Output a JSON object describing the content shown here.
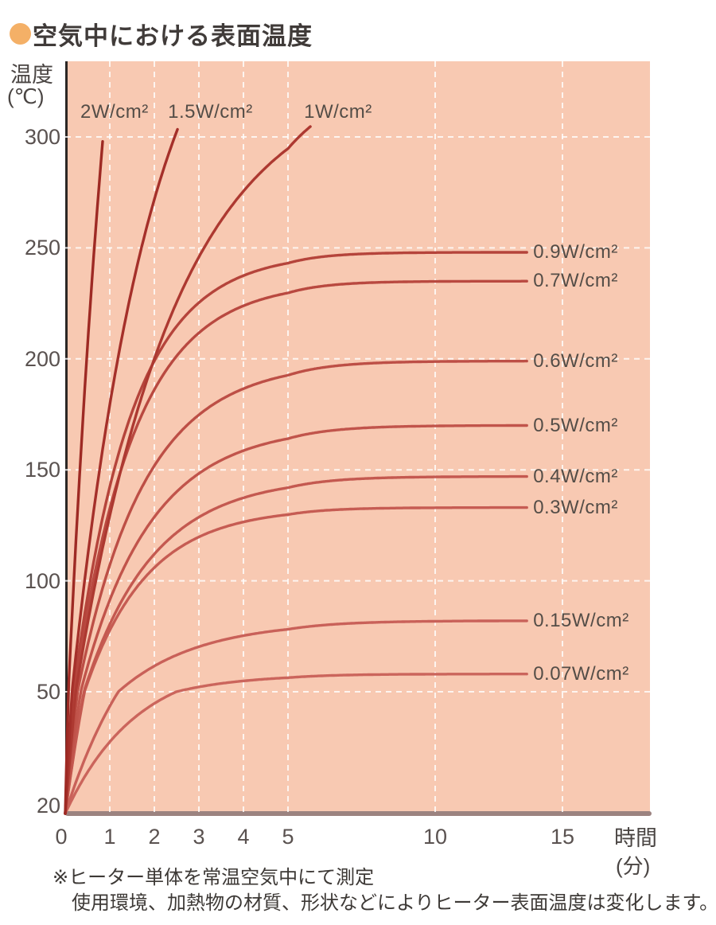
{
  "title": "空気中における表面温度",
  "footnotes": [
    "※ヒーター単体を常温空気中にて測定",
    "使用環境、加熱物の材質、形状などによりヒーター表面温度は変化します。"
  ],
  "colors": {
    "plot_background": "#f8c9b2",
    "gridline": "#ffffff",
    "axis_line": "#2b2725",
    "baseline_bar": "#9c8380",
    "title_bullet": "#f4b067",
    "tick_text": "#5a5250",
    "label_text": "#544d47"
  },
  "chart_data": {
    "type": "line",
    "title": "空気中における表面温度",
    "ylabel": "温度",
    "ylabel_unit": "(℃)",
    "xlabel": "時間",
    "xlabel_unit": "(分)",
    "ylim": [
      20,
      310
    ],
    "xlim": [
      0,
      16
    ],
    "grid": "white dashed, on",
    "legend_position": "labels next to each curve",
    "axis_notes": "y-axis origin is 20°C ambient; x-axis is compressed after 5 minutes (ticks 0-5 then 10, 15)",
    "x_ticks": [
      0,
      1,
      2,
      3,
      4,
      5,
      10,
      15
    ],
    "y_ticks": [
      300,
      250,
      200,
      150,
      100,
      50,
      20
    ],
    "x_gridlines": [
      1,
      2,
      3,
      4,
      5,
      10,
      15
    ],
    "y_gridlines": [
      300,
      250,
      200,
      150,
      100,
      50
    ],
    "start_temp_c": 20,
    "series": [
      {
        "label": "0.07W/cm²",
        "power_w_cm2": 0.07,
        "saturation_temp_c": 58,
        "tau_min": 1.6,
        "t_end_min": 13.6,
        "offscale": false,
        "label_pos": "right",
        "color": "#cb655c"
      },
      {
        "label": "0.15W/cm²",
        "power_w_cm2": 0.15,
        "saturation_temp_c": 82,
        "tau_min": 1.8,
        "t_end_min": 13.6,
        "offscale": false,
        "label_pos": "right",
        "color": "#c96159"
      },
      {
        "label": "0.3W/cm²",
        "power_w_cm2": 0.3,
        "saturation_temp_c": 133,
        "tau_min": 1.4,
        "t_end_min": 13.6,
        "offscale": false,
        "label_pos": "right",
        "color": "#c65c53"
      },
      {
        "label": "0.4W/cm²",
        "power_w_cm2": 0.4,
        "saturation_temp_c": 147,
        "tau_min": 1.55,
        "t_end_min": 13.6,
        "offscale": false,
        "label_pos": "right",
        "color": "#c45950"
      },
      {
        "label": "0.5W/cm²",
        "power_w_cm2": 0.5,
        "saturation_temp_c": 170,
        "tau_min": 1.55,
        "t_end_min": 13.6,
        "offscale": false,
        "label_pos": "right",
        "color": "#c1544b"
      },
      {
        "label": "0.6W/cm²",
        "power_w_cm2": 0.6,
        "saturation_temp_c": 199,
        "tau_min": 1.5,
        "t_end_min": 13.6,
        "offscale": false,
        "label_pos": "right",
        "color": "#bd4f46"
      },
      {
        "label": "0.7W/cm²",
        "power_w_cm2": 0.7,
        "saturation_temp_c": 235,
        "tau_min": 1.35,
        "t_end_min": 13.6,
        "offscale": false,
        "label_pos": "right",
        "color": "#b94940"
      },
      {
        "label": "0.9W/cm²",
        "power_w_cm2": 0.9,
        "saturation_temp_c": 248,
        "tau_min": 1.3,
        "t_end_min": 13.6,
        "offscale": false,
        "label_pos": "right",
        "color": "#b5443b"
      },
      {
        "label": "1W/cm²",
        "power_w_cm2": 1,
        "saturation_temp_c": null,
        "model_temp_c": 330,
        "tau_min": 2.3,
        "exit_temp_c": 305,
        "offscale": true,
        "label_pos": "top",
        "label_dx": -8,
        "label_y": 127,
        "color": "#ad3931"
      },
      {
        "label": "1.5W/cm²",
        "power_w_cm2": 1.5,
        "saturation_temp_c": null,
        "model_temp_c": 400,
        "tau_min": 1.84,
        "exit_temp_c": 305,
        "offscale": true,
        "label_pos": "top",
        "label_dx": -12,
        "label_y": 127,
        "color": "#a5302a"
      },
      {
        "label": "2W/cm²",
        "power_w_cm2": 2,
        "saturation_temp_c": null,
        "model_temp_c": 620,
        "tau_min": 1.35,
        "exit_temp_c": 305,
        "offscale": true,
        "label_pos": "top",
        "label_dx": -28,
        "label_y": 127,
        "color": "#9e2a24"
      }
    ]
  }
}
